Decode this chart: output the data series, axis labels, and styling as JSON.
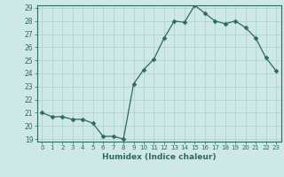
{
  "x": [
    0,
    1,
    2,
    3,
    4,
    5,
    6,
    7,
    8,
    9,
    10,
    11,
    12,
    13,
    14,
    15,
    16,
    17,
    18,
    19,
    20,
    21,
    22,
    23
  ],
  "y": [
    21.0,
    20.7,
    20.7,
    20.5,
    20.5,
    20.2,
    19.2,
    19.2,
    19.0,
    23.2,
    24.3,
    25.1,
    26.7,
    28.0,
    27.9,
    29.2,
    28.6,
    28.0,
    27.8,
    28.0,
    27.5,
    26.7,
    25.2,
    24.2
  ],
  "xlabel": "Humidex (Indice chaleur)",
  "ylim": [
    19,
    29
  ],
  "xlim": [
    -0.5,
    23.5
  ],
  "yticks": [
    19,
    20,
    21,
    22,
    23,
    24,
    25,
    26,
    27,
    28,
    29
  ],
  "xticks": [
    0,
    1,
    2,
    3,
    4,
    5,
    6,
    7,
    8,
    9,
    10,
    11,
    12,
    13,
    14,
    15,
    16,
    17,
    18,
    19,
    20,
    21,
    22,
    23
  ],
  "line_color": "#2d6b5e",
  "marker": "D",
  "marker_size": 2.5,
  "bg_color": "#cde8e5",
  "grid_color": "#afd4d0",
  "tick_color": "#2d6b5e",
  "label_color": "#2d6b5e"
}
